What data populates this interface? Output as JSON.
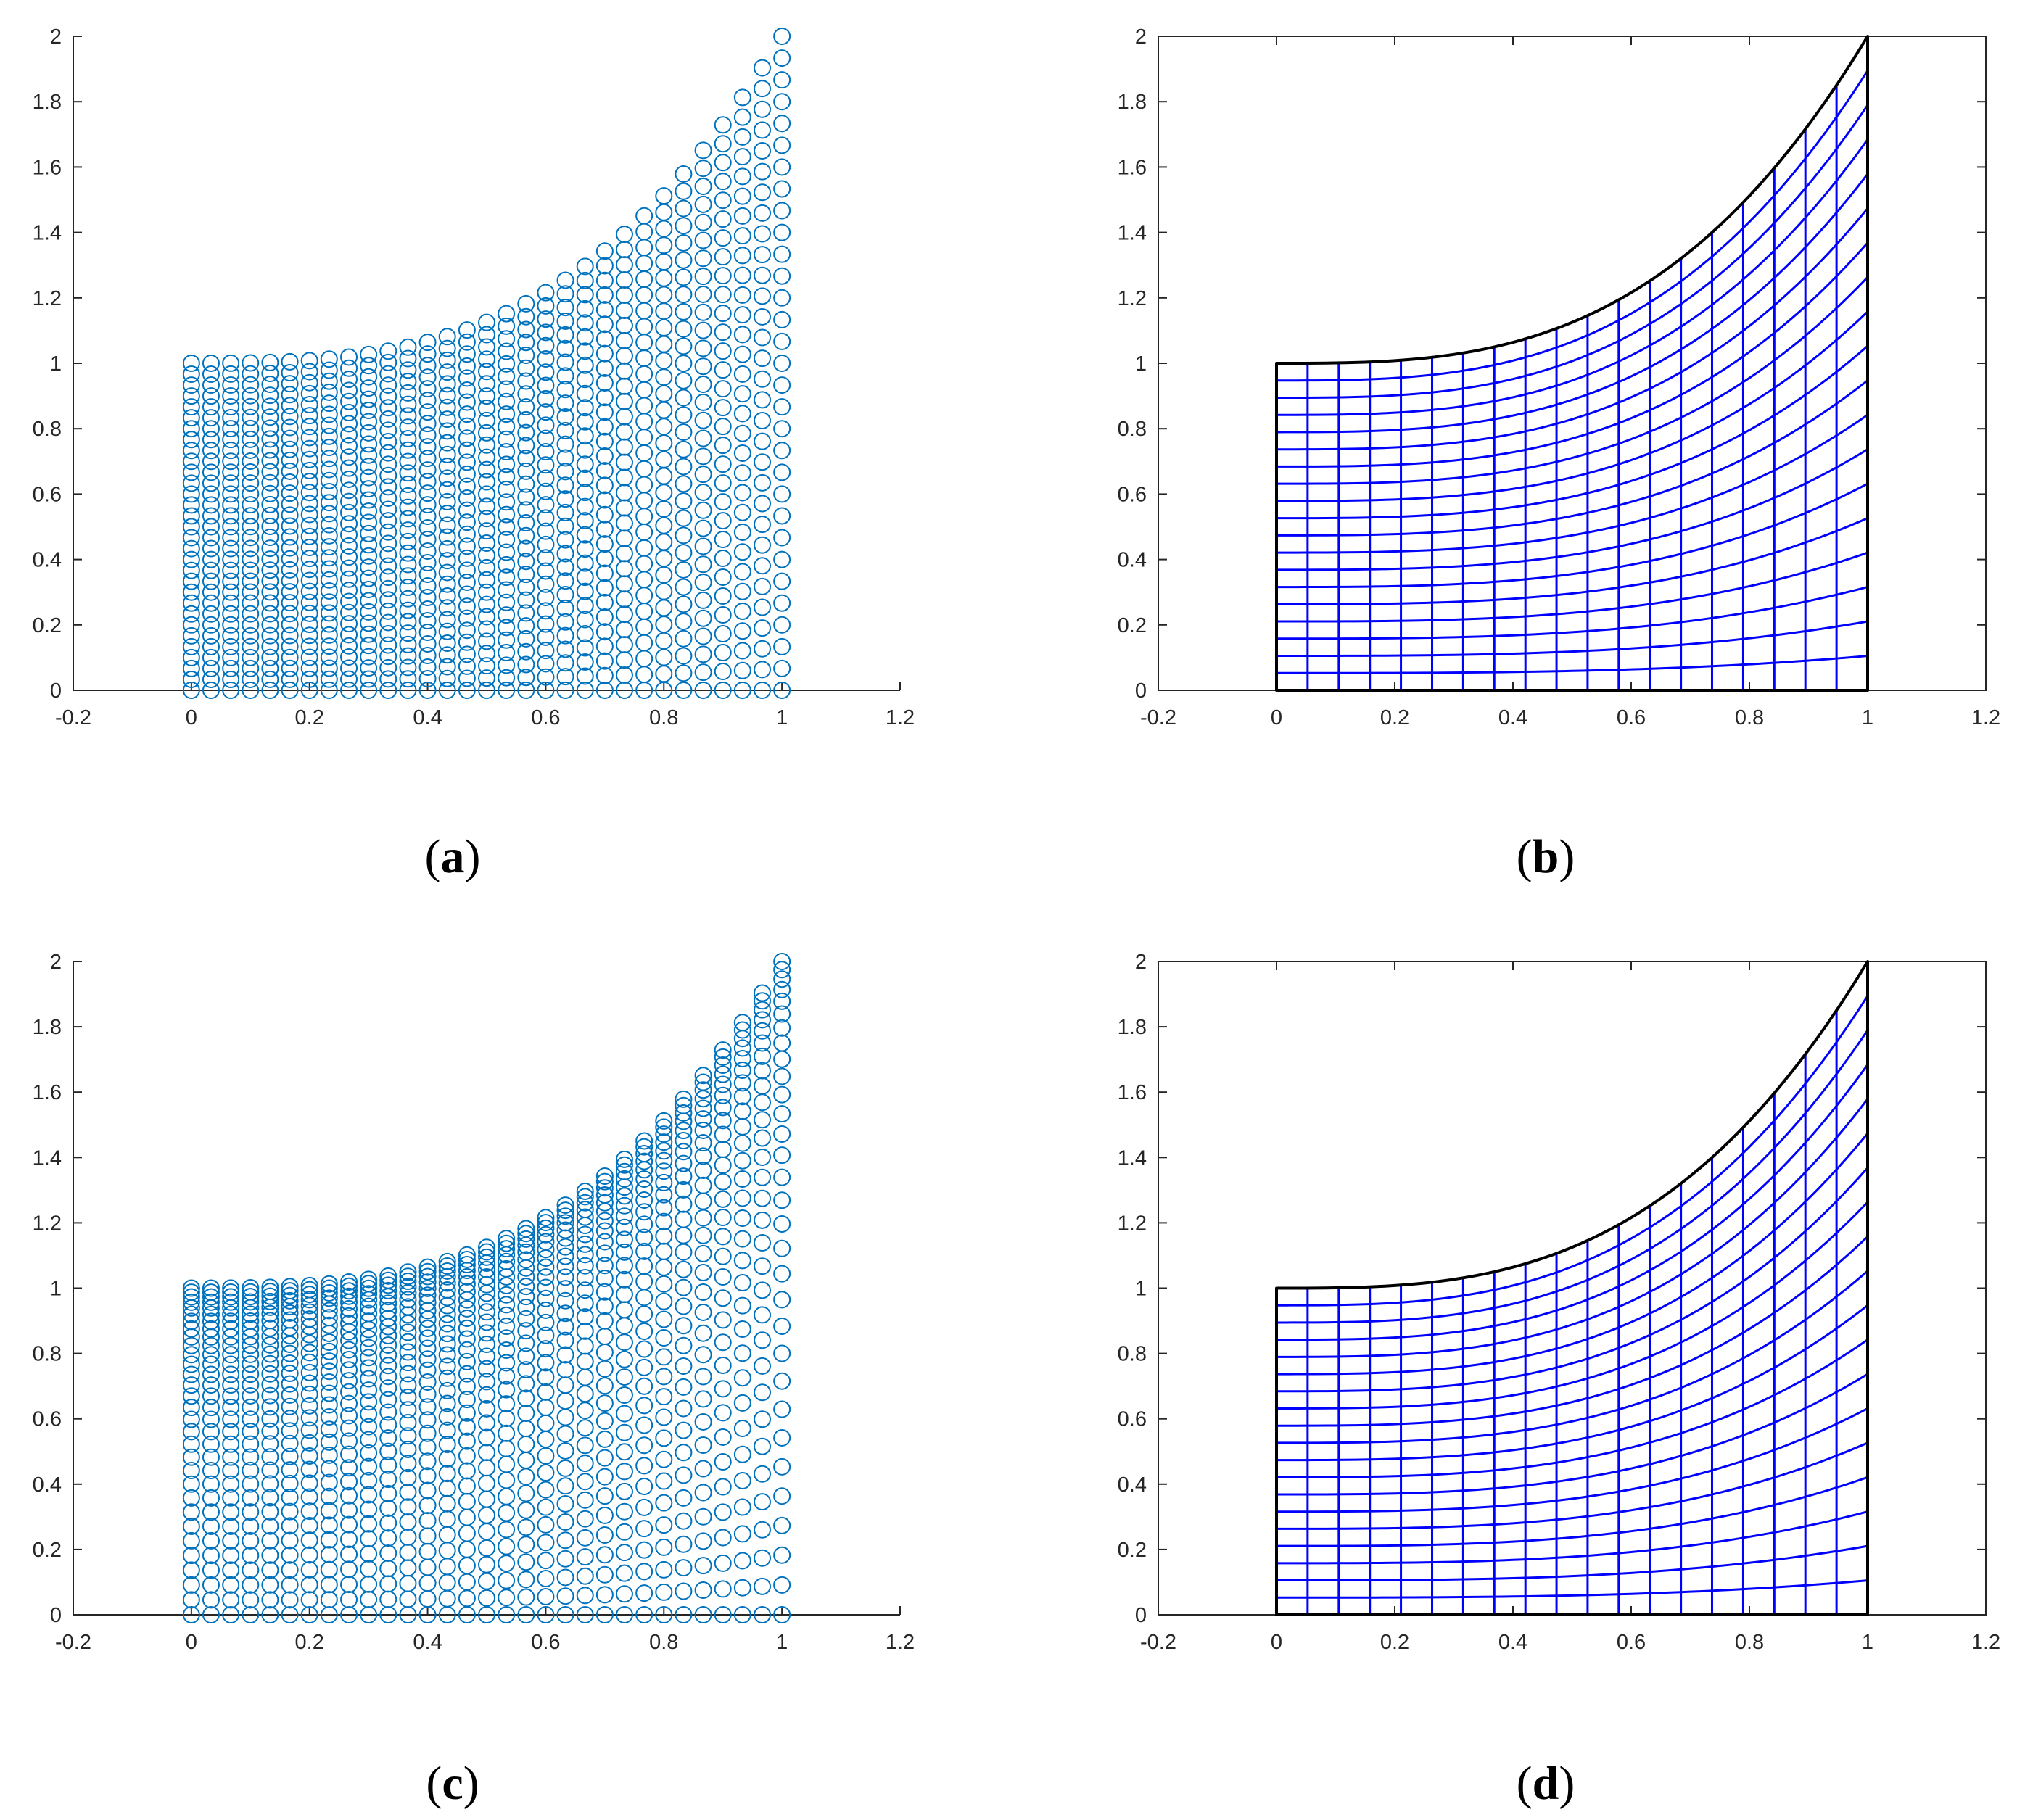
{
  "colors": {
    "scatter_marker": "#0072BD",
    "mesh_grid": "#0000FF",
    "mesh_boundary": "#000000",
    "axis": "#262626"
  },
  "chart_data": [
    {
      "panel": "a",
      "type": "scatter",
      "caption": "(a)",
      "caption_parts": {
        "open": "(",
        "letter": "a",
        "close": ")"
      },
      "marker": "circle-open",
      "title": "",
      "xlabel": "",
      "ylabel": "",
      "xlim": [
        -0.2,
        1.2
      ],
      "ylim": [
        0,
        2
      ],
      "xticks": [
        -0.2,
        0,
        0.2,
        0.4,
        0.6,
        0.8,
        1,
        1.2
      ],
      "yticks": [
        0,
        0.2,
        0.4,
        0.6,
        0.8,
        1,
        1.2,
        1.4,
        1.6,
        1.8,
        2
      ],
      "xtick_labels": [
        "-0.2",
        "0",
        "0.2",
        "0.4",
        "0.6",
        "0.8",
        "1",
        "1.2"
      ],
      "ytick_labels": [
        "0",
        "0.2",
        "0.4",
        "0.6",
        "0.8",
        "1",
        "1.2",
        "1.4",
        "1.6",
        "1.8",
        "2"
      ],
      "box": "open",
      "domain": {
        "x_range": [
          0,
          1
        ],
        "bottom": "y = 0",
        "top": "y = 1 + x^3"
      },
      "x_nodes": [
        0,
        0.0333,
        0.0667,
        0.1,
        0.1333,
        0.1667,
        0.2,
        0.2333,
        0.2667,
        0.3,
        0.3333,
        0.3667,
        0.4,
        0.4333,
        0.4667,
        0.5,
        0.5333,
        0.5667,
        0.6,
        0.6333,
        0.6667,
        0.7,
        0.7333,
        0.7667,
        0.8,
        0.8333,
        0.8667,
        0.9,
        0.9333,
        0.9667,
        1
      ],
      "nodes_per_column": 31,
      "y_spacing": "uniform"
    },
    {
      "panel": "b",
      "type": "mesh",
      "caption": "(b)",
      "caption_parts": {
        "open": "(",
        "letter": "b",
        "close": ")"
      },
      "title": "",
      "xlabel": "",
      "ylabel": "",
      "xlim": [
        -0.2,
        1.2
      ],
      "ylim": [
        0,
        2
      ],
      "xticks": [
        -0.2,
        0,
        0.2,
        0.4,
        0.6,
        0.8,
        1,
        1.2
      ],
      "yticks": [
        0,
        0.2,
        0.4,
        0.6,
        0.8,
        1,
        1.2,
        1.4,
        1.6,
        1.8,
        2
      ],
      "xtick_labels": [
        "-0.2",
        "0",
        "0.2",
        "0.4",
        "0.6",
        "0.8",
        "1",
        "1.2"
      ],
      "ytick_labels": [
        "0",
        "0.2",
        "0.4",
        "0.6",
        "0.8",
        "1",
        "1.2",
        "1.4",
        "1.6",
        "1.8",
        "2"
      ],
      "box": "closed",
      "domain": {
        "x_range": [
          0,
          1
        ],
        "bottom": "y = 0",
        "top": "y = 1 + x^3"
      },
      "x_lines": [
        0,
        0.0526,
        0.1053,
        0.1579,
        0.2105,
        0.2632,
        0.3158,
        0.3684,
        0.4211,
        0.4737,
        0.5263,
        0.5789,
        0.6316,
        0.6842,
        0.7368,
        0.7895,
        0.8421,
        0.8947,
        0.9474,
        1
      ],
      "v_fractions": [
        0,
        0.0526,
        0.1053,
        0.1579,
        0.2105,
        0.2632,
        0.3158,
        0.3684,
        0.4211,
        0.4737,
        0.5263,
        0.5789,
        0.6316,
        0.6842,
        0.7368,
        0.7895,
        0.8421,
        0.8947,
        0.9474,
        1
      ]
    },
    {
      "panel": "c",
      "type": "scatter",
      "caption": "(c)",
      "caption_parts": {
        "open": "(",
        "letter": "c",
        "close": ")"
      },
      "marker": "circle-open",
      "title": "",
      "xlabel": "",
      "ylabel": "",
      "xlim": [
        -0.2,
        1.2
      ],
      "ylim": [
        0,
        2
      ],
      "xticks": [
        -0.2,
        0,
        0.2,
        0.4,
        0.6,
        0.8,
        1,
        1.2
      ],
      "yticks": [
        0,
        0.2,
        0.4,
        0.6,
        0.8,
        1,
        1.2,
        1.4,
        1.6,
        1.8,
        2
      ],
      "xtick_labels": [
        "-0.2",
        "0",
        "0.2",
        "0.4",
        "0.6",
        "0.8",
        "1",
        "1.2"
      ],
      "ytick_labels": [
        "0",
        "0.2",
        "0.4",
        "0.6",
        "0.8",
        "1",
        "1.2",
        "1.4",
        "1.6",
        "1.8",
        "2"
      ],
      "box": "open",
      "domain": {
        "x_range": [
          0,
          1
        ],
        "bottom": "y = 0",
        "top": "y = 1 + x^3"
      },
      "x_nodes": [
        0,
        0.0333,
        0.0667,
        0.1,
        0.1333,
        0.1667,
        0.2,
        0.2333,
        0.2667,
        0.3,
        0.3333,
        0.3667,
        0.4,
        0.4333,
        0.4667,
        0.5,
        0.5333,
        0.5667,
        0.6,
        0.6333,
        0.6667,
        0.7,
        0.7333,
        0.7667,
        0.8,
        0.8333,
        0.8667,
        0.9,
        0.9333,
        0.9667,
        1
      ],
      "nodes_per_column": 31,
      "y_spacing": "clustered"
    },
    {
      "panel": "d",
      "type": "mesh",
      "caption": "(d)",
      "caption_parts": {
        "open": "(",
        "letter": "d",
        "close": ")"
      },
      "title": "",
      "xlabel": "",
      "ylabel": "",
      "xlim": [
        -0.2,
        1.2
      ],
      "ylim": [
        0,
        2
      ],
      "xticks": [
        -0.2,
        0,
        0.2,
        0.4,
        0.6,
        0.8,
        1,
        1.2
      ],
      "yticks": [
        0,
        0.2,
        0.4,
        0.6,
        0.8,
        1,
        1.2,
        1.4,
        1.6,
        1.8,
        2
      ],
      "xtick_labels": [
        "-0.2",
        "0",
        "0.2",
        "0.4",
        "0.6",
        "0.8",
        "1",
        "1.2"
      ],
      "ytick_labels": [
        "0",
        "0.2",
        "0.4",
        "0.6",
        "0.8",
        "1",
        "1.2",
        "1.4",
        "1.6",
        "1.8",
        "2"
      ],
      "box": "closed",
      "domain": {
        "x_range": [
          0,
          1
        ],
        "bottom": "y = 0",
        "top": "y = 1 + x^3"
      },
      "x_lines": [
        0,
        0.0526,
        0.1053,
        0.1579,
        0.2105,
        0.2632,
        0.3158,
        0.3684,
        0.4211,
        0.4737,
        0.5263,
        0.5789,
        0.6316,
        0.6842,
        0.7368,
        0.7895,
        0.8421,
        0.8947,
        0.9474,
        1
      ],
      "v_fractions": [
        0,
        0.0526,
        0.1053,
        0.1579,
        0.2105,
        0.2632,
        0.3158,
        0.3684,
        0.4211,
        0.4737,
        0.5263,
        0.5789,
        0.6316,
        0.6842,
        0.7368,
        0.7895,
        0.8421,
        0.8947,
        0.9474,
        1
      ]
    }
  ]
}
